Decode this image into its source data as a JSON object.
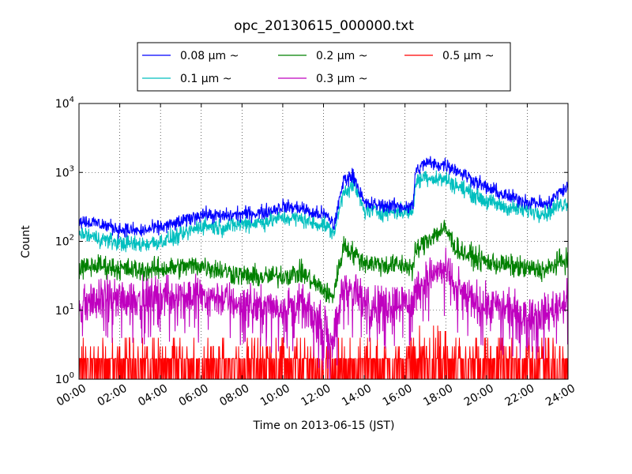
{
  "chart_data": {
    "type": "line",
    "title": "opc_20130615_000000.txt",
    "xlabel": "Time on 2013-06-15 (JST)",
    "ylabel": "Count",
    "y_scale": "log",
    "ylim": [
      1,
      10000
    ],
    "xlim": [
      "00:00",
      "24:00"
    ],
    "grid": true,
    "legend_position": "top-center, outside plot",
    "x_ticks": [
      "00:00",
      "02:00",
      "04:00",
      "06:00",
      "08:00",
      "10:00",
      "12:00",
      "14:00",
      "16:00",
      "18:00",
      "20:00",
      "22:00",
      "24:00"
    ],
    "y_ticks": [
      {
        "value": 1,
        "base": "10",
        "exp": "0"
      },
      {
        "value": 10,
        "base": "10",
        "exp": "1"
      },
      {
        "value": 100,
        "base": "10",
        "exp": "2"
      },
      {
        "value": 1000,
        "base": "10",
        "exp": "3"
      },
      {
        "value": 10000,
        "base": "10",
        "exp": "4"
      }
    ],
    "x": [
      0,
      1,
      2,
      3,
      4,
      5,
      6,
      7,
      8,
      9,
      10,
      11,
      11.5,
      12,
      12.4,
      12.5,
      13,
      13.5,
      14,
      15,
      16,
      16.4,
      16.5,
      17,
      17.5,
      18,
      18.5,
      19,
      20,
      21,
      22,
      23,
      23.5,
      24
    ],
    "series": [
      {
        "name": "0.08 μm ~",
        "color": "#0000ff",
        "values": [
          200,
          180,
          150,
          140,
          160,
          190,
          250,
          230,
          250,
          260,
          320,
          300,
          250,
          250,
          200,
          160,
          800,
          900,
          350,
          330,
          320,
          320,
          1000,
          1400,
          1300,
          1300,
          1100,
          900,
          600,
          450,
          380,
          340,
          500,
          600
        ]
      },
      {
        "name": "0.1 μm ~",
        "color": "#00bfbf",
        "values": [
          130,
          110,
          95,
          90,
          100,
          120,
          170,
          160,
          180,
          190,
          220,
          210,
          180,
          180,
          140,
          130,
          550,
          650,
          280,
          270,
          270,
          270,
          700,
          900,
          800,
          800,
          650,
          550,
          380,
          310,
          280,
          260,
          330,
          370
        ]
      },
      {
        "name": "0.2 μm ~",
        "color": "#008000",
        "values": [
          40,
          45,
          40,
          38,
          40,
          42,
          45,
          38,
          32,
          30,
          32,
          35,
          25,
          20,
          15,
          18,
          90,
          65,
          50,
          45,
          45,
          40,
          70,
          100,
          130,
          150,
          80,
          65,
          50,
          45,
          40,
          38,
          50,
          55
        ]
      },
      {
        "name": "0.3 μm ~",
        "color": "#bf00bf",
        "values": [
          12,
          14,
          15,
          15,
          16,
          17,
          17,
          15,
          12,
          11,
          12,
          11,
          8,
          6,
          4,
          4,
          25,
          18,
          13,
          12,
          14,
          12,
          20,
          28,
          35,
          40,
          20,
          16,
          12,
          10,
          9,
          9,
          12,
          14
        ]
      },
      {
        "name": "0.5 μm ~",
        "color": "#ff0000",
        "values": [
          2,
          2,
          2,
          2,
          2,
          2,
          2,
          2,
          2,
          2,
          2,
          2,
          2,
          2,
          1,
          1,
          3,
          2,
          2,
          2,
          2,
          2,
          3,
          4,
          4,
          3,
          2,
          2,
          2,
          2,
          2,
          2,
          2,
          2
        ]
      }
    ]
  }
}
